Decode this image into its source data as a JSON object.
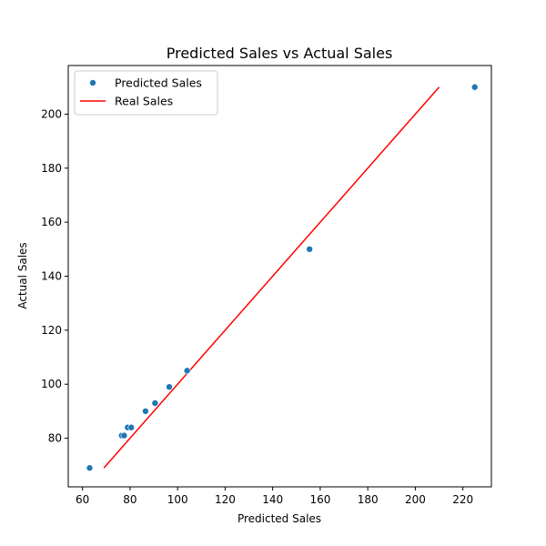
{
  "chart_data": {
    "type": "scatter",
    "title": "Predicted Sales vs Actual Sales",
    "xlabel": "Predicted Sales",
    "ylabel": "Actual Sales",
    "xlim": [
      54,
      232
    ],
    "ylim": [
      62,
      218
    ],
    "xticks": [
      60,
      80,
      100,
      120,
      140,
      160,
      180,
      200,
      220
    ],
    "yticks": [
      80,
      100,
      120,
      140,
      160,
      180,
      200
    ],
    "grid": false,
    "legend_position": "top-left",
    "series": [
      {
        "name": "Predicted Sales",
        "kind": "scatter",
        "color": "#1f77b4",
        "points": [
          {
            "x": 63,
            "y": 69
          },
          {
            "x": 76.5,
            "y": 81
          },
          {
            "x": 77.5,
            "y": 81
          },
          {
            "x": 79,
            "y": 84
          },
          {
            "x": 80.5,
            "y": 84
          },
          {
            "x": 86.5,
            "y": 90
          },
          {
            "x": 90.5,
            "y": 93
          },
          {
            "x": 96.5,
            "y": 99
          },
          {
            "x": 104,
            "y": 105
          },
          {
            "x": 155.5,
            "y": 150
          },
          {
            "x": 225,
            "y": 210
          }
        ]
      },
      {
        "name": "Real Sales",
        "kind": "line",
        "color": "#ff0000",
        "points": [
          {
            "x": 69,
            "y": 69
          },
          {
            "x": 210,
            "y": 210
          }
        ]
      }
    ]
  }
}
